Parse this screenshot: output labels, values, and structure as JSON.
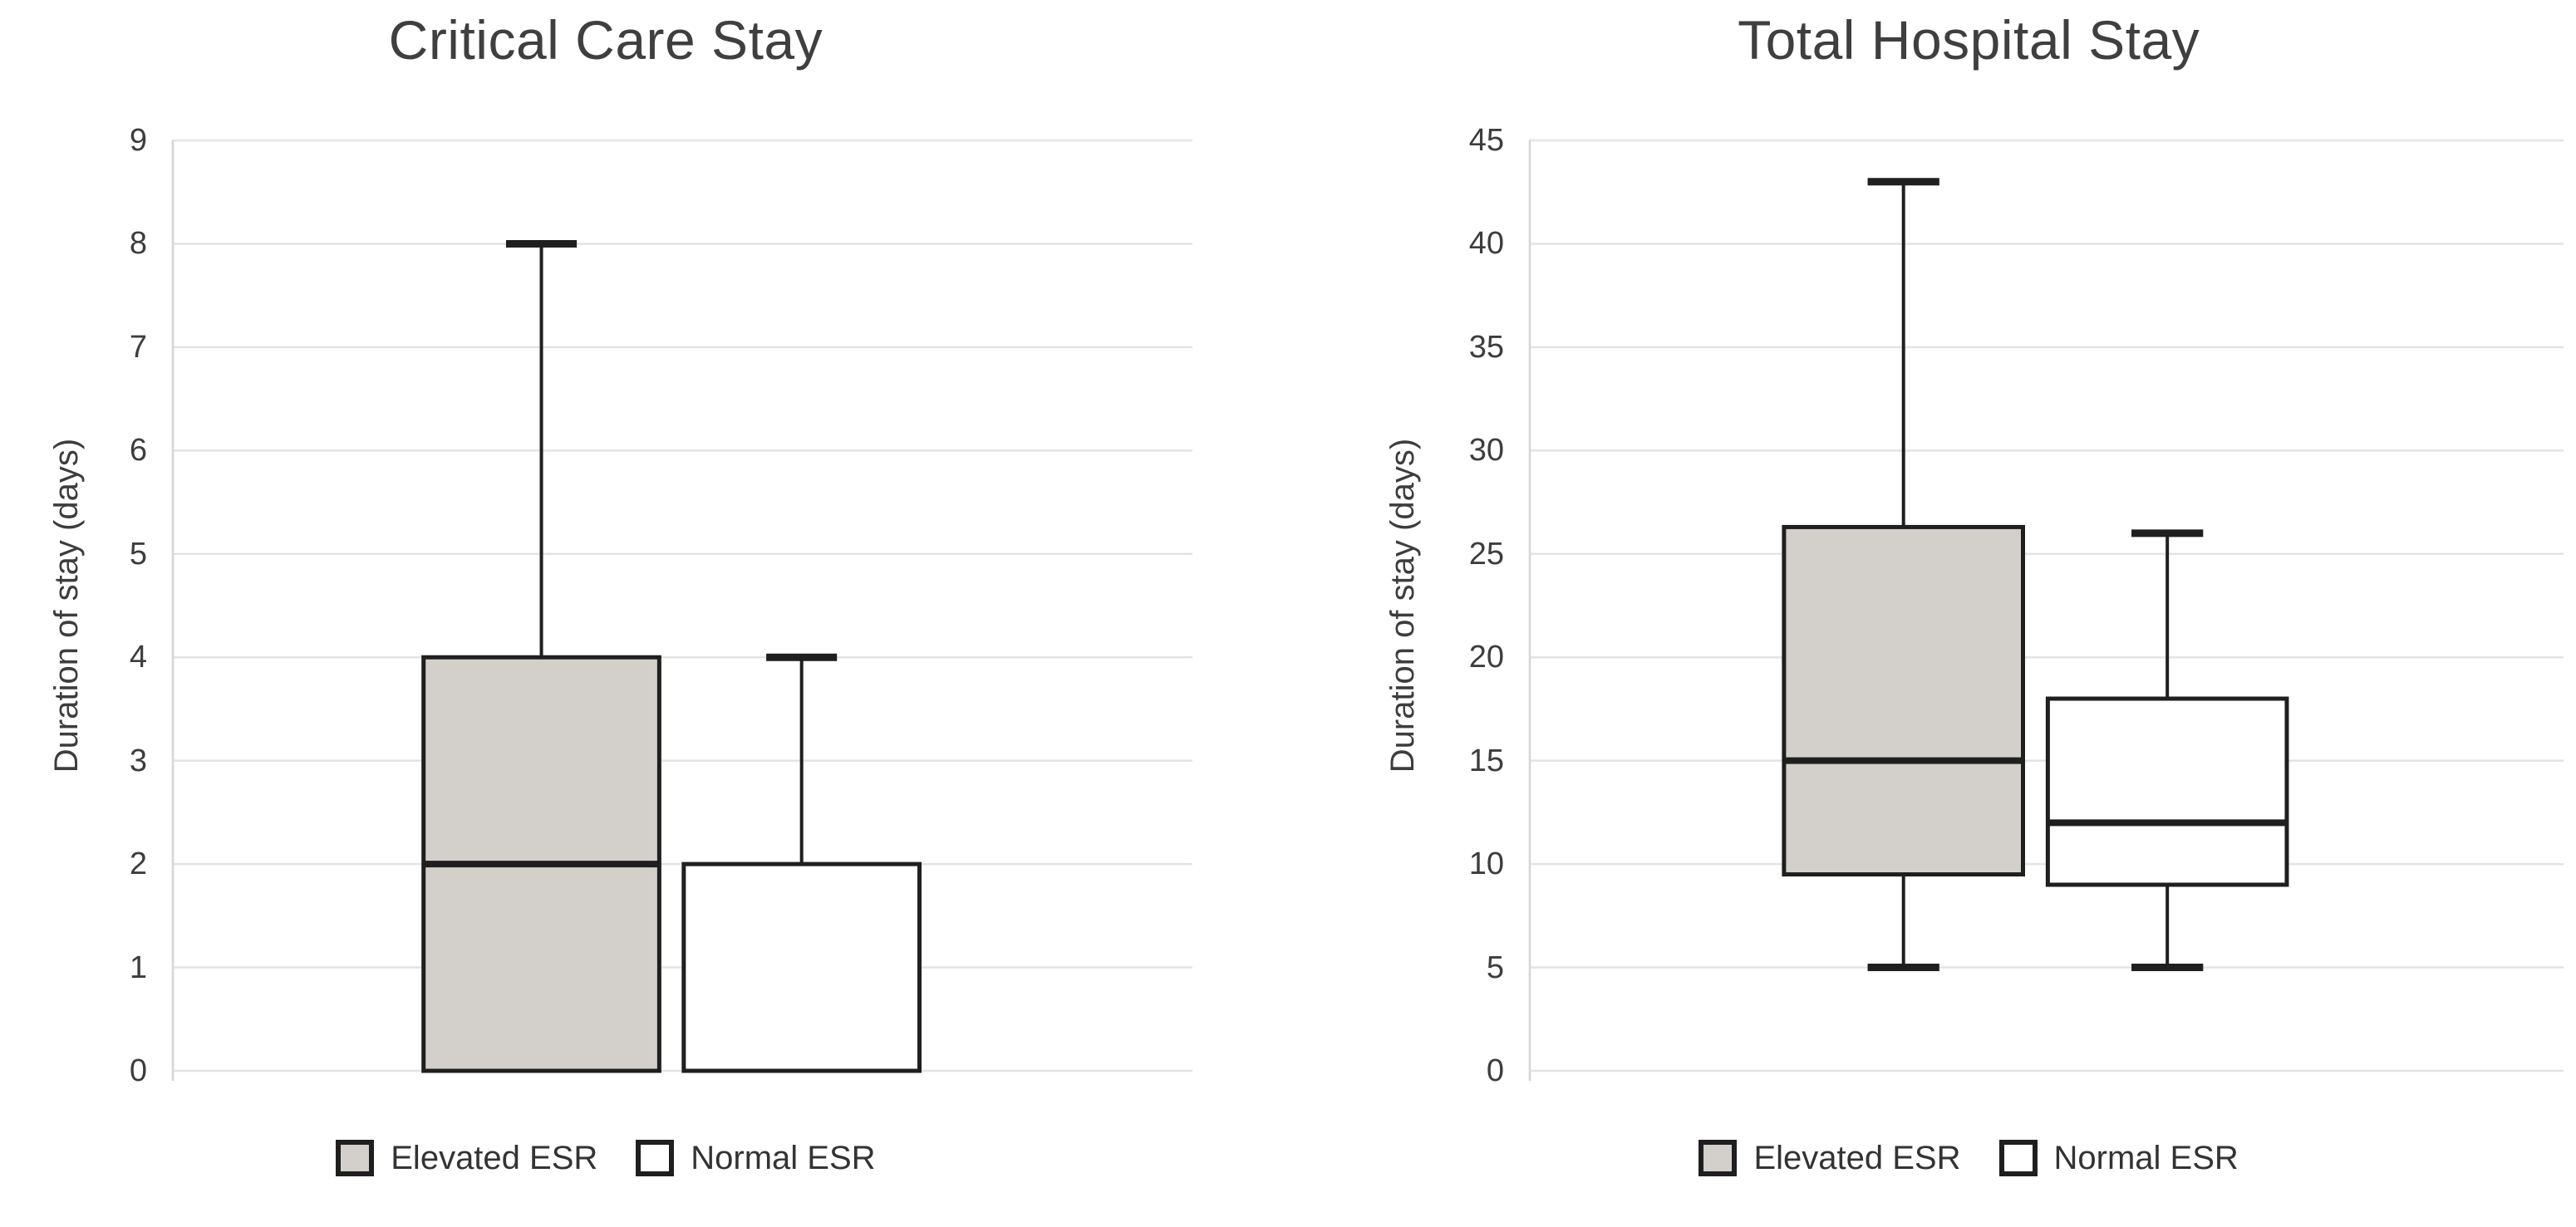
{
  "page": {
    "background": "#ffffff"
  },
  "chart_data": [
    {
      "type": "boxplot",
      "title": "Critical Care Stay",
      "ylabel": "Duration of stay (days)",
      "xlabel": "",
      "ylim": [
        0,
        9
      ],
      "ytick_step": 1,
      "yticks": [
        0,
        1,
        2,
        3,
        4,
        5,
        6,
        7,
        8,
        9
      ],
      "grid": "horizontal",
      "legend_position": "bottom",
      "categories": [
        "Elevated ESR",
        "Normal ESR"
      ],
      "series": [
        {
          "name": "Elevated ESR",
          "fill": "#d3d0cc",
          "min": 0,
          "q1": 0,
          "median": 2,
          "q3": 4,
          "max": 8
        },
        {
          "name": "Normal ESR",
          "fill": "#ffffff",
          "min": 0,
          "q1": 0,
          "median": 0,
          "q3": 2,
          "max": 4
        }
      ],
      "colors": {
        "box_border": "#1f1f1f",
        "gridline": "#e3e3e2",
        "axis_line": "#d6d6d6",
        "text": "#3f3f3f"
      }
    },
    {
      "type": "boxplot",
      "title": "Total Hospital Stay",
      "ylabel": "Duration of stay (days)",
      "xlabel": "",
      "ylim": [
        0,
        45
      ],
      "ytick_step": 5,
      "yticks": [
        0,
        5,
        10,
        15,
        20,
        25,
        30,
        35,
        40,
        45
      ],
      "grid": "horizontal",
      "legend_position": "bottom",
      "categories": [
        "Elevated ESR",
        "Normal ESR"
      ],
      "series": [
        {
          "name": "Elevated ESR",
          "fill": "#d3d0cc",
          "min": 5,
          "q1": 9.5,
          "median": 15,
          "q3": 26.3,
          "max": 43
        },
        {
          "name": "Normal ESR",
          "fill": "#ffffff",
          "min": 5,
          "q1": 9,
          "median": 12,
          "q3": 18,
          "max": 26
        }
      ],
      "colors": {
        "box_border": "#1f1f1f",
        "gridline": "#e3e3e2",
        "axis_line": "#d6d6d6",
        "text": "#3f3f3f"
      }
    }
  ]
}
